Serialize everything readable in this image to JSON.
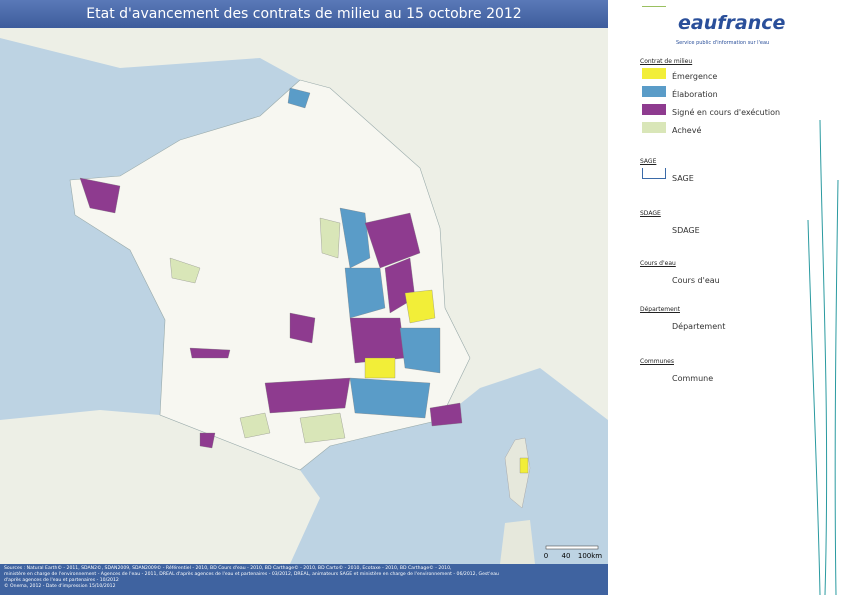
{
  "header": {
    "title": "Etat d'avancement des contrats de milieu au 15 octobre 2012"
  },
  "logo": {
    "name": "eaufrance",
    "tagline": "Service public d'information sur l'eau"
  },
  "legend": {
    "sections": [
      {
        "heading": "Contrat de milieu",
        "items": [
          {
            "label": "Émergence"
          },
          {
            "label": "Élaboration"
          },
          {
            "label": "Signé en cours d'exécution"
          },
          {
            "label": "Achevé"
          }
        ]
      },
      {
        "heading": "SAGE",
        "items": [
          {
            "label": "SAGE"
          }
        ]
      },
      {
        "heading": "SDAGE",
        "items": [
          {
            "label": "SDAGE"
          }
        ]
      },
      {
        "heading": "Cours d'eau",
        "items": [
          {
            "label": "Cours d'eau"
          }
        ]
      },
      {
        "heading": "Département",
        "items": [
          {
            "label": "Département"
          }
        ]
      },
      {
        "heading": "Communes",
        "items": [
          {
            "label": "Commune"
          }
        ]
      }
    ]
  },
  "scale": {
    "labels": [
      "0",
      "40",
      "100km"
    ]
  },
  "footer": {
    "lines": [
      "Sources : Natural Earth© - 2011, SDAN2©, SDAN2009, SDAN2009© - Référentiel - 2010, BD Cours d'eau - 2010, BD Carthage© - 2010, BD Carto© - 2010, Ecotaxe - 2010, BD Carthage© - 2010,",
      "ministère en charge de l'environnement - Agences de l'eau - 2011, DREAL d'après agences de l'eau et partenaires - 03/2012, DREAL, animateurs SAGE et ministère en charge de l'environnement - 06/2012, Gest'eau",
      "d'après agences de l'eau et partenaires - 10/2012",
      "© Onema, 2012 - Date d'impression 15/10/2012"
    ]
  }
}
